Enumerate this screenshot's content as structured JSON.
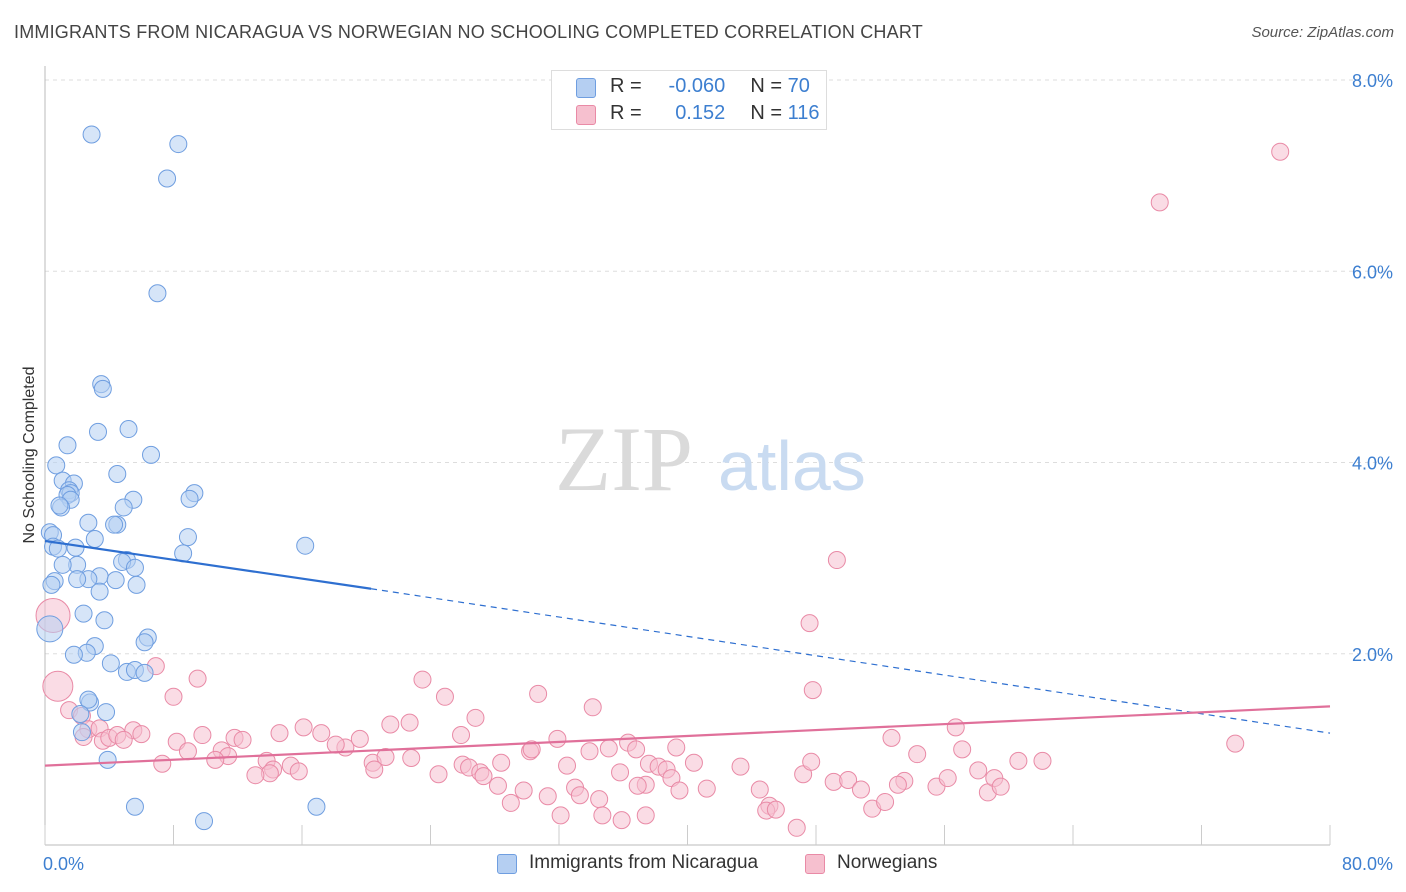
{
  "title": "IMMIGRANTS FROM NICARAGUA VS NORWEGIAN NO SCHOOLING COMPLETED CORRELATION CHART",
  "source": "Source: ZipAtlas.com",
  "watermark": {
    "zip": "ZIP",
    "atlas": "atlas"
  },
  "legend": {
    "rows": [
      {
        "r_label": "R =",
        "r_value": "-0.060",
        "n_label": "N =",
        "n_value": "70"
      },
      {
        "r_label": "R =",
        "r_value": "0.152",
        "n_label": "N =",
        "n_value": "116"
      }
    ]
  },
  "colors": {
    "blue_fill": "#b5cff2",
    "blue_stroke": "#6f9ee0",
    "blue_line": "#2e6fd0",
    "pink_fill": "#f6c0cf",
    "pink_stroke": "#e98aa6",
    "pink_line": "#e0709a",
    "tick_text": "#3d7fd0"
  },
  "chart_data": {
    "type": "scatter",
    "title": "IMMIGRANTS FROM NICARAGUA VS NORWEGIAN NO SCHOOLING COMPLETED CORRELATION CHART",
    "xlabel": "",
    "ylabel": "No Schooling Completed",
    "xlim": [
      0,
      80
    ],
    "ylim": [
      0,
      8
    ],
    "x_tick_labels": [
      "0.0%",
      "80.0%"
    ],
    "y_tick_labels": [
      "2.0%",
      "4.0%",
      "6.0%",
      "8.0%"
    ],
    "y_ticks": [
      2,
      4,
      6,
      8
    ],
    "grid": true,
    "legend_position": "bottom",
    "series": [
      {
        "name": "Immigrants from Nicaragua",
        "color": "blue",
        "R": -0.06,
        "N": 70,
        "trend": {
          "x_start": 0,
          "y_start": 3.18,
          "x_solid_end": 20.3,
          "y_solid_end": 2.68,
          "x_end": 80,
          "y_end": 1.17
        },
        "points": [
          [
            2.9,
            7.43
          ],
          [
            8.3,
            7.33
          ],
          [
            7.6,
            6.97
          ],
          [
            7.0,
            5.77
          ],
          [
            3.5,
            4.82
          ],
          [
            3.6,
            4.77
          ],
          [
            3.3,
            4.32
          ],
          [
            5.2,
            4.35
          ],
          [
            1.4,
            4.18
          ],
          [
            6.6,
            4.08
          ],
          [
            0.7,
            3.97
          ],
          [
            4.5,
            3.88
          ],
          [
            1.1,
            3.81
          ],
          [
            1.8,
            3.78
          ],
          [
            1.5,
            3.71
          ],
          [
            1.6,
            3.68
          ],
          [
            1.4,
            3.66
          ],
          [
            1.6,
            3.61
          ],
          [
            9.3,
            3.68
          ],
          [
            9.0,
            3.62
          ],
          [
            5.5,
            3.61
          ],
          [
            1.0,
            3.53
          ],
          [
            0.9,
            3.55
          ],
          [
            4.9,
            3.53
          ],
          [
            2.7,
            3.37
          ],
          [
            4.5,
            3.35
          ],
          [
            4.3,
            3.35
          ],
          [
            0.3,
            3.27
          ],
          [
            0.5,
            3.24
          ],
          [
            3.1,
            3.2
          ],
          [
            8.9,
            3.22
          ],
          [
            16.2,
            3.13
          ],
          [
            0.5,
            3.12
          ],
          [
            0.8,
            3.1
          ],
          [
            1.9,
            3.11
          ],
          [
            5.1,
            2.98
          ],
          [
            4.8,
            2.96
          ],
          [
            8.6,
            3.05
          ],
          [
            2.0,
            2.93
          ],
          [
            1.1,
            2.93
          ],
          [
            5.6,
            2.9
          ],
          [
            3.4,
            2.81
          ],
          [
            4.4,
            2.77
          ],
          [
            2.7,
            2.78
          ],
          [
            2.0,
            2.78
          ],
          [
            0.6,
            2.76
          ],
          [
            0.4,
            2.72
          ],
          [
            5.7,
            2.72
          ],
          [
            3.4,
            2.65
          ],
          [
            2.4,
            2.42
          ],
          [
            3.7,
            2.35
          ],
          [
            0.3,
            2.26
          ],
          [
            6.4,
            2.17
          ],
          [
            6.2,
            2.12
          ],
          [
            3.1,
            2.08
          ],
          [
            2.6,
            2.01
          ],
          [
            1.8,
            1.99
          ],
          [
            4.1,
            1.9
          ],
          [
            5.1,
            1.81
          ],
          [
            5.6,
            1.83
          ],
          [
            6.2,
            1.8
          ],
          [
            2.8,
            1.49
          ],
          [
            2.7,
            1.52
          ],
          [
            2.2,
            1.37
          ],
          [
            3.8,
            1.39
          ],
          [
            2.3,
            1.18
          ],
          [
            3.9,
            0.89
          ],
          [
            5.6,
            0.4
          ],
          [
            16.9,
            0.4
          ],
          [
            9.9,
            0.25
          ]
        ]
      },
      {
        "name": "Norwegians",
        "color": "pink",
        "R": 0.152,
        "N": 116,
        "trend": {
          "x_start": 0,
          "y_start": 0.83,
          "x_end": 80,
          "y_end": 1.45
        },
        "points": [
          [
            76.9,
            7.25
          ],
          [
            69.4,
            6.72
          ],
          [
            49.3,
            2.98
          ],
          [
            47.6,
            2.32
          ],
          [
            47.8,
            1.62
          ],
          [
            0.5,
            2.4
          ],
          [
            0.8,
            1.66
          ],
          [
            6.9,
            1.87
          ],
          [
            9.5,
            1.74
          ],
          [
            23.5,
            1.73
          ],
          [
            8.0,
            1.55
          ],
          [
            24.9,
            1.55
          ],
          [
            30.7,
            1.58
          ],
          [
            34.1,
            1.44
          ],
          [
            26.8,
            1.33
          ],
          [
            1.5,
            1.41
          ],
          [
            2.3,
            1.35
          ],
          [
            2.7,
            1.21
          ],
          [
            3.4,
            1.22
          ],
          [
            2.4,
            1.13
          ],
          [
            3.6,
            1.09
          ],
          [
            4.0,
            1.12
          ],
          [
            4.5,
            1.15
          ],
          [
            5.5,
            1.2
          ],
          [
            6.0,
            1.16
          ],
          [
            4.9,
            1.1
          ],
          [
            16.1,
            1.23
          ],
          [
            21.5,
            1.26
          ],
          [
            22.7,
            1.28
          ],
          [
            25.9,
            1.15
          ],
          [
            14.6,
            1.17
          ],
          [
            17.2,
            1.17
          ],
          [
            8.2,
            1.08
          ],
          [
            9.8,
            1.15
          ],
          [
            11.8,
            1.12
          ],
          [
            12.3,
            1.1
          ],
          [
            11.0,
            0.99
          ],
          [
            8.9,
            0.98
          ],
          [
            11.4,
            0.93
          ],
          [
            10.6,
            0.89
          ],
          [
            7.3,
            0.85
          ],
          [
            13.8,
            0.88
          ],
          [
            14.2,
            0.79
          ],
          [
            15.3,
            0.83
          ],
          [
            14.0,
            0.75
          ],
          [
            13.1,
            0.73
          ],
          [
            15.8,
            0.77
          ],
          [
            18.7,
            1.02
          ],
          [
            18.1,
            1.05
          ],
          [
            19.6,
            1.11
          ],
          [
            20.4,
            0.86
          ],
          [
            21.2,
            0.92
          ],
          [
            20.5,
            0.79
          ],
          [
            22.8,
            0.91
          ],
          [
            24.5,
            0.74
          ],
          [
            26.0,
            0.84
          ],
          [
            26.4,
            0.81
          ],
          [
            27.1,
            0.76
          ],
          [
            28.4,
            0.86
          ],
          [
            30.2,
            0.98
          ],
          [
            31.9,
            1.11
          ],
          [
            32.5,
            0.83
          ],
          [
            33.0,
            0.6
          ],
          [
            33.9,
            0.98
          ],
          [
            35.1,
            1.01
          ],
          [
            36.3,
            1.07
          ],
          [
            36.8,
            1.0
          ],
          [
            37.6,
            0.85
          ],
          [
            38.2,
            0.82
          ],
          [
            38.7,
            0.79
          ],
          [
            39.3,
            1.02
          ],
          [
            40.4,
            0.86
          ],
          [
            37.4,
            0.63
          ],
          [
            39.0,
            0.7
          ],
          [
            41.2,
            0.59
          ],
          [
            43.3,
            0.82
          ],
          [
            44.5,
            0.58
          ],
          [
            45.1,
            0.41
          ],
          [
            44.9,
            0.36
          ],
          [
            45.5,
            0.37
          ],
          [
            46.8,
            0.18
          ],
          [
            47.2,
            0.74
          ],
          [
            47.7,
            0.87
          ],
          [
            49.1,
            0.66
          ],
          [
            50.0,
            0.68
          ],
          [
            50.8,
            0.58
          ],
          [
            51.5,
            0.38
          ],
          [
            52.3,
            0.45
          ],
          [
            52.7,
            1.12
          ],
          [
            53.5,
            0.67
          ],
          [
            54.3,
            0.95
          ],
          [
            55.5,
            0.61
          ],
          [
            56.2,
            0.7
          ],
          [
            58.7,
            0.55
          ],
          [
            59.1,
            0.7
          ],
          [
            59.5,
            0.61
          ],
          [
            58.1,
            0.78
          ],
          [
            56.7,
            1.23
          ],
          [
            53.1,
            0.63
          ],
          [
            30.3,
            1.0
          ],
          [
            29.8,
            0.57
          ],
          [
            29.0,
            0.44
          ],
          [
            31.3,
            0.51
          ],
          [
            28.2,
            0.62
          ],
          [
            27.3,
            0.72
          ],
          [
            33.3,
            0.52
          ],
          [
            34.5,
            0.48
          ],
          [
            35.8,
            0.76
          ],
          [
            36.9,
            0.62
          ],
          [
            34.7,
            0.31
          ],
          [
            35.9,
            0.26
          ],
          [
            37.4,
            0.31
          ],
          [
            39.5,
            0.57
          ],
          [
            32.1,
            0.31
          ],
          [
            57.1,
            1.0
          ],
          [
            74.1,
            1.06
          ],
          [
            60.6,
            0.88
          ],
          [
            62.1,
            0.88
          ]
        ]
      }
    ]
  },
  "bottom_legend": [
    {
      "label": "Immigrants from Nicaragua"
    },
    {
      "label": "Norwegians"
    }
  ]
}
